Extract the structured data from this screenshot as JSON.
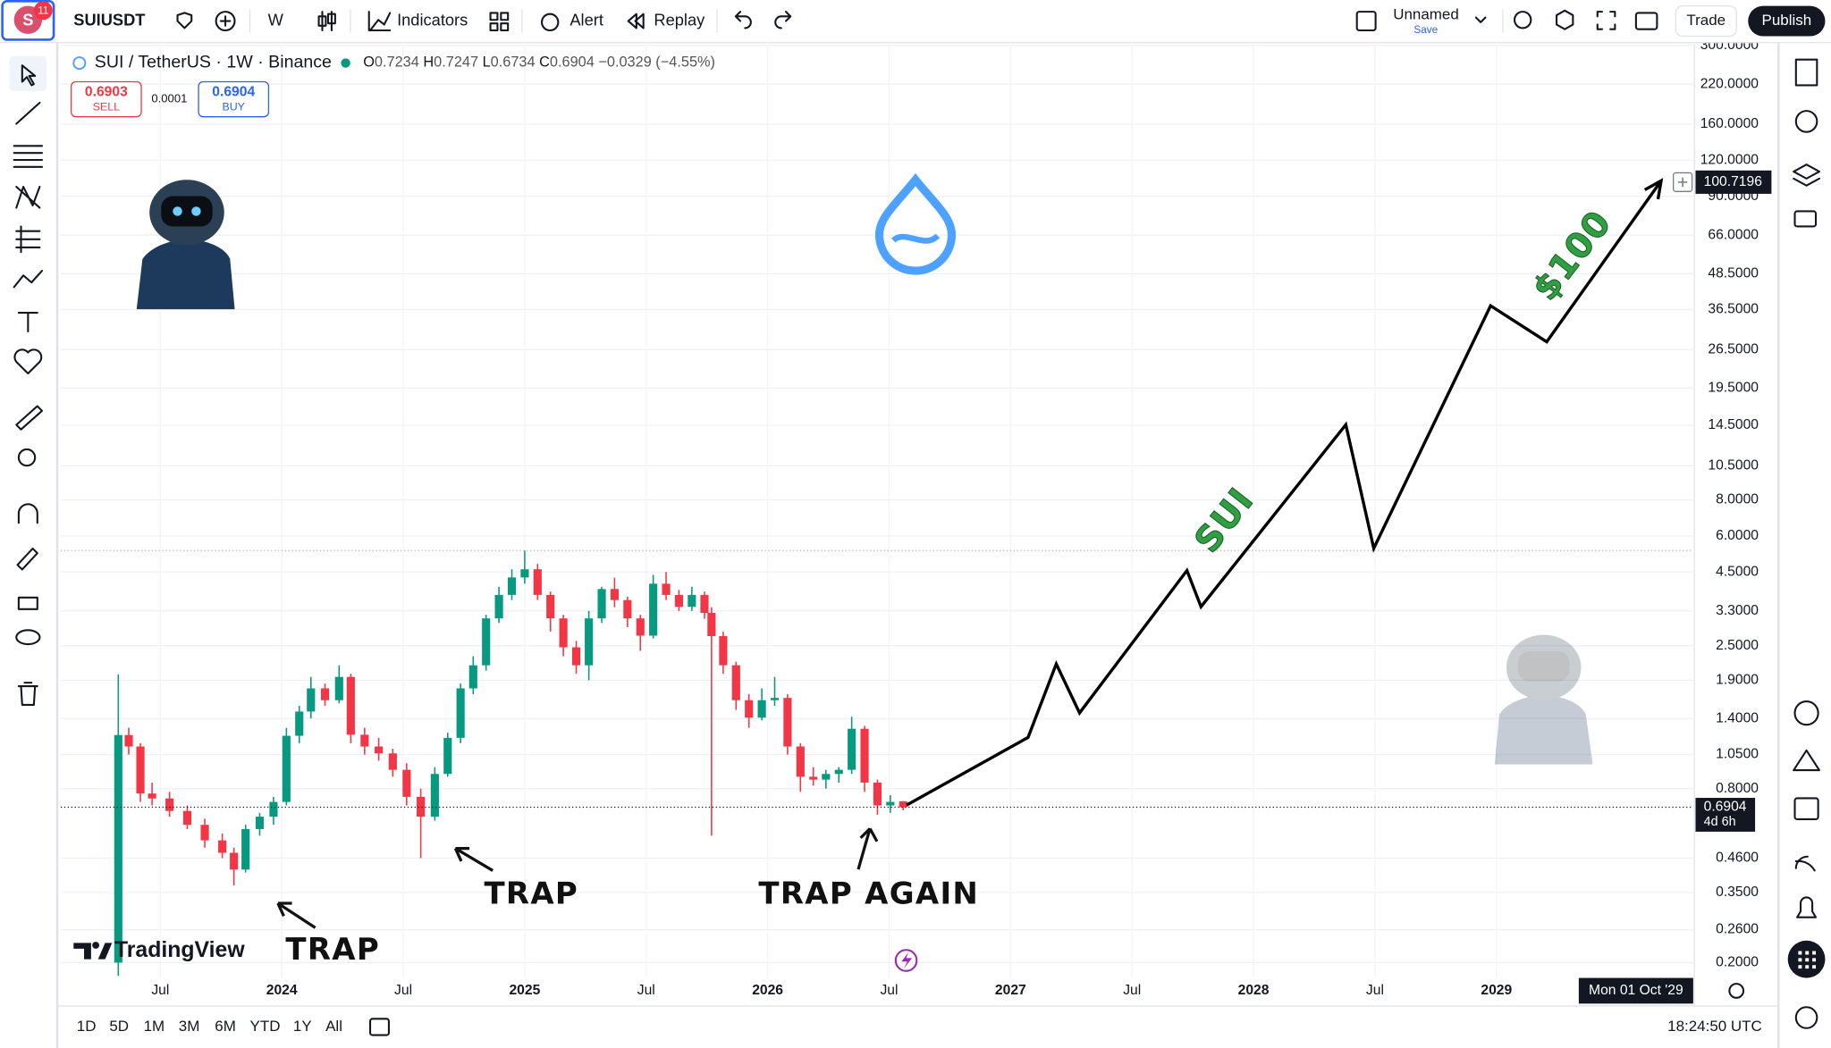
{
  "toolbar": {
    "avatar": "S",
    "notifications": "11",
    "symbol": "SUIUSDT",
    "interval": "W",
    "indicators": "Indicators",
    "alert": "Alert",
    "replay": "Replay",
    "layout_name": "Unnamed",
    "save": "Save",
    "trade": "Trade",
    "publish": "Publish"
  },
  "legend": {
    "title": "SUI / TetherUS · 1W · Binance",
    "open_label": "O",
    "open": "0.7234",
    "high_label": "H",
    "high": "0.7247",
    "low_label": "L",
    "low": "0.6734",
    "close_label": "C",
    "close": "0.6904",
    "change": "−0.0329 (−4.55%)"
  },
  "order_buttons": {
    "sell_price": "0.6903",
    "sell": "SELL",
    "spread": "0.0001",
    "buy_price": "0.6904",
    "buy": "BUY"
  },
  "chart_data": {
    "type": "candlestick",
    "watermark": "TradingView",
    "log_scale": true,
    "grid": true,
    "up_color": "#089981",
    "down_color": "#f23645",
    "xlim": [
      2023.09,
      2029.81
    ],
    "xticks": [
      {
        "value": 2023.5,
        "label": "Jul"
      },
      2024,
      {
        "value": 2024.5,
        "label": "Jul"
      },
      2025,
      {
        "value": 2025.5,
        "label": "Jul"
      },
      2026,
      {
        "value": 2026.5,
        "label": "Jul"
      },
      2027,
      {
        "value": 2027.5,
        "label": "Jul"
      },
      2028,
      {
        "value": 2028.5,
        "label": "Jul"
      },
      2029
    ],
    "ylim": [
      0.177,
      302
    ],
    "yticks": [
      {
        "value": 300,
        "label": "300.0000"
      },
      {
        "value": 220,
        "label": "220.0000"
      },
      {
        "value": 160,
        "label": "160.0000"
      },
      {
        "value": 120,
        "label": "120.0000"
      },
      {
        "value": 90,
        "label": "90.0000"
      },
      {
        "value": 66,
        "label": "66.0000"
      },
      {
        "value": 48.5,
        "label": "48.5000"
      },
      {
        "value": 36.5,
        "label": "36.5000"
      },
      {
        "value": 26.5,
        "label": "26.5000"
      },
      {
        "value": 19.5,
        "label": "19.5000"
      },
      {
        "value": 14.5,
        "label": "14.5000"
      },
      {
        "value": 10.5,
        "label": "10.5000"
      },
      {
        "value": 8,
        "label": "8.0000"
      },
      {
        "value": 6,
        "label": "6.0000"
      },
      {
        "value": 4.5,
        "label": "4.5000"
      },
      {
        "value": 3.3,
        "label": "3.3000"
      },
      {
        "value": 2.5,
        "label": "2.5000"
      },
      {
        "value": 1.9,
        "label": "1.9000"
      },
      {
        "value": 1.4,
        "label": "1.4000"
      },
      {
        "value": 1.05,
        "label": "1.0500"
      },
      {
        "value": 0.8,
        "label": "0.8000"
      },
      {
        "value": 0.46,
        "label": "0.4600"
      },
      {
        "value": 0.35,
        "label": "0.3500"
      },
      {
        "value": 0.26,
        "label": "0.2600"
      },
      {
        "value": 0.2,
        "label": "0.2000"
      }
    ],
    "ohlc": {
      "x": [
        2023.327,
        2023.37,
        2023.418,
        2023.466,
        2023.538,
        2023.611,
        2023.683,
        2023.755,
        2023.803,
        2023.851,
        2023.909,
        2023.966,
        2024.019,
        2024.072,
        2024.12,
        2024.178,
        2024.236,
        2024.284,
        2024.341,
        2024.399,
        2024.457,
        2024.514,
        2024.572,
        2024.63,
        2024.683,
        2024.736,
        2024.788,
        2024.841,
        2024.894,
        2024.947,
        2025.0,
        2025.053,
        2025.106,
        2025.159,
        2025.212,
        2025.264,
        2025.317,
        2025.37,
        2025.423,
        2025.476,
        2025.529,
        2025.582,
        2025.635,
        2025.688,
        2025.74,
        2025.769,
        2025.817,
        2025.87,
        2025.923,
        2025.976,
        2026.029,
        2026.082,
        2026.135,
        2026.188,
        2026.24,
        2026.293,
        2026.346,
        2026.399,
        2026.452,
        2026.505,
        2026.558
      ],
      "open": [
        0.2,
        1.227,
        1.12,
        0.77,
        0.74,
        0.67,
        0.6,
        0.53,
        0.48,
        0.42,
        0.58,
        0.64,
        0.72,
        1.22,
        1.48,
        1.78,
        1.62,
        1.95,
        1.23,
        1.12,
        1.06,
        0.93,
        0.75,
        0.64,
        0.9,
        1.2,
        1.78,
        2.14,
        3.11,
        3.75,
        4.31,
        4.6,
        3.75,
        3.11,
        2.47,
        2.14,
        3.11,
        3.93,
        3.6,
        3.11,
        2.71,
        4.1,
        3.75,
        3.41,
        3.75,
        3.25,
        2.7,
        2.14,
        1.62,
        1.41,
        1.62,
        1.65,
        1.12,
        0.88,
        0.86,
        0.9,
        0.93,
        1.29,
        0.84,
        0.7,
        0.7234
      ],
      "high": [
        1.99,
        1.3,
        1.15,
        0.84,
        0.78,
        0.7,
        0.63,
        0.56,
        0.5,
        0.6,
        0.66,
        0.75,
        1.3,
        1.55,
        1.95,
        1.85,
        2.14,
        2.0,
        1.3,
        1.2,
        1.1,
        0.98,
        0.8,
        0.95,
        1.25,
        1.85,
        2.3,
        3.2,
        4.0,
        4.6,
        5.34,
        4.8,
        3.85,
        3.2,
        2.6,
        3.3,
        4.0,
        4.3,
        3.7,
        3.2,
        4.4,
        4.5,
        3.9,
        4.0,
        3.85,
        3.4,
        2.8,
        2.2,
        1.7,
        1.78,
        1.95,
        1.7,
        1.15,
        0.95,
        0.93,
        0.95,
        1.42,
        1.32,
        0.86,
        0.76,
        0.7247
      ],
      "low": [
        0.18,
        1.05,
        0.72,
        0.7,
        0.64,
        0.58,
        0.5,
        0.46,
        0.37,
        0.41,
        0.55,
        0.6,
        0.7,
        1.15,
        1.4,
        1.55,
        1.58,
        1.15,
        1.05,
        1.0,
        0.88,
        0.7,
        0.46,
        0.62,
        0.88,
        1.15,
        1.7,
        2.05,
        3.0,
        3.6,
        4.1,
        3.6,
        2.8,
        2.3,
        2.0,
        1.9,
        3.0,
        3.4,
        2.9,
        2.4,
        2.65,
        3.6,
        3.3,
        3.3,
        3.1,
        0.55,
        2.0,
        1.5,
        1.3,
        1.38,
        1.55,
        1.05,
        0.78,
        0.82,
        0.8,
        0.84,
        0.9,
        0.78,
        0.65,
        0.66,
        0.6734
      ],
      "close": [
        1.227,
        1.12,
        0.77,
        0.74,
        0.67,
        0.6,
        0.53,
        0.48,
        0.42,
        0.58,
        0.64,
        0.72,
        1.22,
        1.48,
        1.78,
        1.62,
        1.95,
        1.23,
        1.12,
        1.06,
        0.93,
        0.75,
        0.64,
        0.9,
        1.2,
        1.78,
        2.14,
        3.11,
        3.75,
        4.31,
        4.6,
        3.75,
        3.11,
        2.47,
        2.14,
        3.11,
        3.93,
        3.6,
        3.11,
        2.71,
        4.1,
        3.75,
        3.41,
        3.75,
        3.25,
        2.7,
        2.14,
        1.62,
        1.41,
        1.62,
        1.65,
        1.12,
        0.88,
        0.86,
        0.9,
        0.93,
        1.29,
        0.84,
        0.7,
        0.72,
        0.6904
      ]
    },
    "projection": {
      "color": "#000000",
      "x": [
        2026.572,
        2027.072,
        2027.188,
        2027.284,
        2027.726,
        2027.784,
        2028.38,
        2028.495,
        2028.976,
        2029.207,
        2029.678
      ],
      "values": [
        0.702,
        1.204,
        2.163,
        1.464,
        4.556,
        3.413,
        14.57,
        5.435,
        37.6,
        28.2,
        101.8
      ]
    },
    "annotations": [
      {
        "text": "TRAP",
        "color": "#111111"
      },
      {
        "text": "TRAP",
        "color": "#111111"
      },
      {
        "text": "TRAP AGAIN",
        "color": "#111111"
      },
      {
        "text": "SUI",
        "color": "#2ea043"
      },
      {
        "text": "$100",
        "color": "#2ea043"
      }
    ],
    "last_price": 0.6904,
    "countdown": "4d 6h",
    "crosshair_price": 100.7196,
    "crosshair_date": "Mon 01 Oct '29"
  },
  "bottom_bar": {
    "ranges": [
      "1D",
      "5D",
      "1M",
      "3M",
      "6M",
      "YTD",
      "1Y",
      "All"
    ],
    "clock": "18:24:50 UTC"
  }
}
